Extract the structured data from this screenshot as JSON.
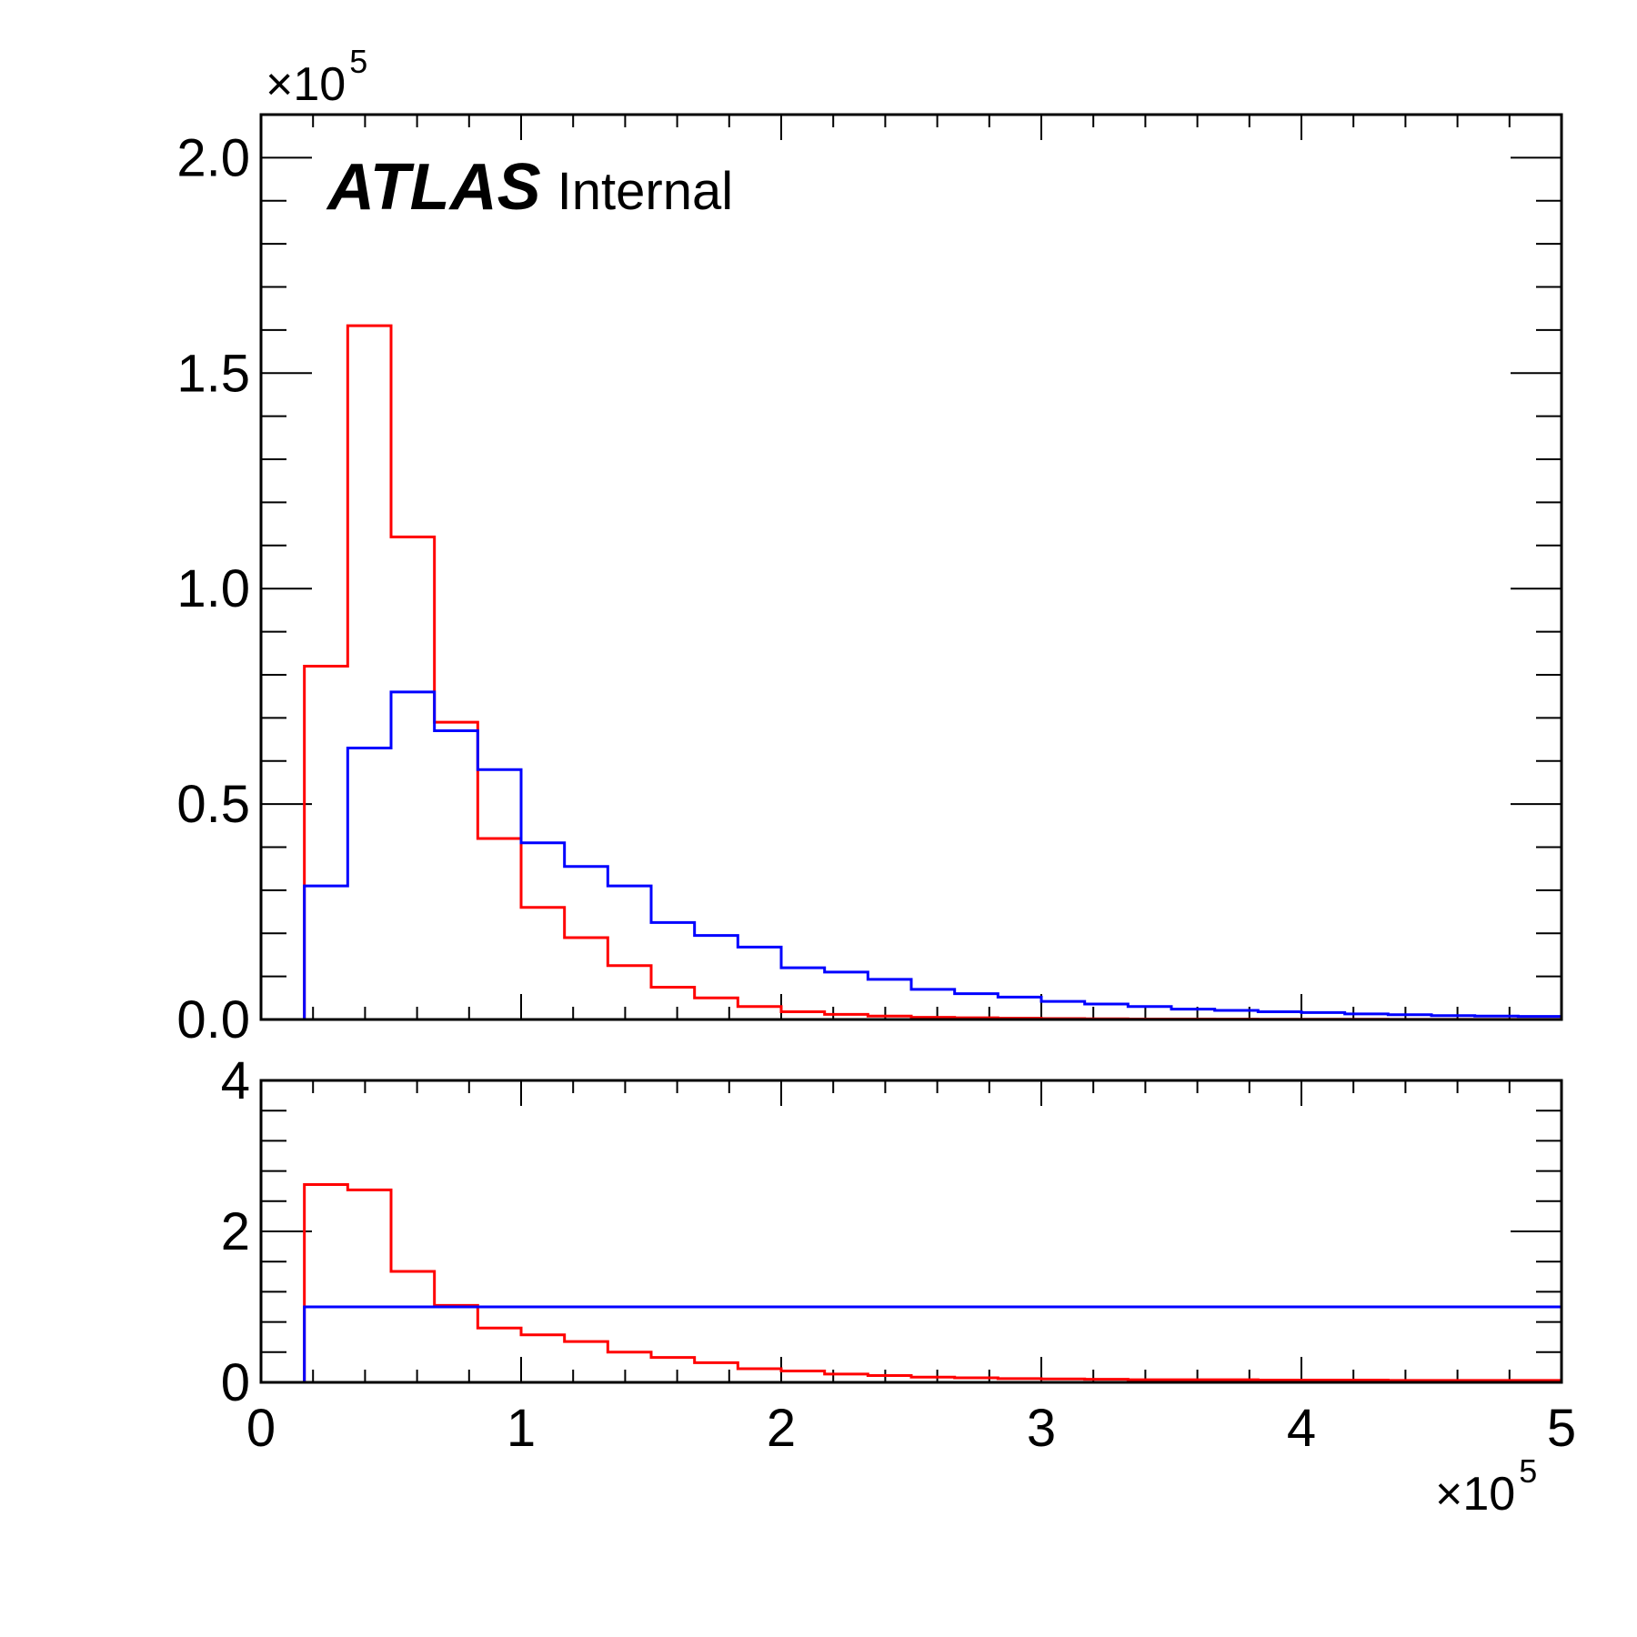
{
  "atlas_label": {
    "bold": "ATLAS",
    "suffix": "Internal"
  },
  "multipliers": {
    "top_y_base": "×10",
    "top_y_exp": "5",
    "x_base": "×10",
    "x_exp": "5"
  },
  "colors": {
    "series_a": "#ff0000",
    "series_b": "#0000ff",
    "axes": "#000000"
  },
  "chart_data": [
    {
      "type": "histogram",
      "panel": "main",
      "xlim": [
        0,
        5
      ],
      "ylim": [
        0,
        2.1
      ],
      "x_scale_label": "×10^5",
      "y_scale_label": "×10^5",
      "xticks": [
        0,
        1,
        2,
        3,
        4,
        5
      ],
      "yticks": [
        "0.0",
        "0.5",
        "1.0",
        "1.5",
        "2.0"
      ],
      "bin_edges": [
        0.1667,
        0.3333,
        0.5,
        0.6667,
        0.8333,
        1.0,
        1.1667,
        1.3333,
        1.5,
        1.6667,
        1.8333,
        2.0,
        2.1667,
        2.3333,
        2.5,
        2.6667,
        2.8333,
        3.0,
        3.1667,
        3.3333,
        3.5,
        3.6667,
        3.8333,
        4.0,
        4.1667,
        4.3333,
        4.5,
        4.6667,
        4.8333,
        5.0
      ],
      "series": [
        {
          "color": "#ff0000",
          "values": [
            0.82,
            1.61,
            1.12,
            0.69,
            0.42,
            0.26,
            0.19,
            0.125,
            0.075,
            0.05,
            0.03,
            0.018,
            0.012,
            0.008,
            0.005,
            0.004,
            0.003,
            0.002,
            0.0015,
            0.001,
            0.001,
            0.0008,
            0.0006,
            0.0005,
            0.0004,
            0.0003,
            0.0003,
            0.0002,
            0.0002
          ]
        },
        {
          "color": "#0000ff",
          "values": [
            0.31,
            0.63,
            0.76,
            0.67,
            0.58,
            0.41,
            0.355,
            0.31,
            0.225,
            0.195,
            0.168,
            0.12,
            0.11,
            0.093,
            0.07,
            0.06,
            0.052,
            0.042,
            0.036,
            0.03,
            0.024,
            0.021,
            0.018,
            0.016,
            0.013,
            0.011,
            0.009,
            0.008,
            0.007
          ]
        }
      ]
    },
    {
      "type": "histogram",
      "panel": "ratio",
      "xlim": [
        0,
        5
      ],
      "ylim": [
        0,
        4
      ],
      "xticks": [
        0,
        1,
        2,
        3,
        4,
        5
      ],
      "yticks": [
        "0",
        "2",
        "4"
      ],
      "bin_edges": [
        0.1667,
        0.3333,
        0.5,
        0.6667,
        0.8333,
        1.0,
        1.1667,
        1.3333,
        1.5,
        1.6667,
        1.8333,
        2.0,
        2.1667,
        2.3333,
        2.5,
        2.6667,
        2.8333,
        3.0,
        3.1667,
        3.3333,
        3.5,
        3.6667,
        3.8333,
        4.0,
        4.1667,
        4.3333,
        4.5,
        4.6667,
        4.8333,
        5.0
      ],
      "series": [
        {
          "color": "#ff0000",
          "values": [
            2.62,
            2.55,
            1.47,
            1.02,
            0.72,
            0.63,
            0.54,
            0.4,
            0.33,
            0.26,
            0.18,
            0.15,
            0.11,
            0.09,
            0.07,
            0.06,
            0.05,
            0.045,
            0.04,
            0.035,
            0.035,
            0.035,
            0.03,
            0.03,
            0.03,
            0.025,
            0.025,
            0.025,
            0.025
          ]
        },
        {
          "color": "#0000ff",
          "values": [
            1.0,
            1.0,
            1.0,
            1.0,
            1.0,
            1.0,
            1.0,
            1.0,
            1.0,
            1.0,
            1.0,
            1.0,
            1.0,
            1.0,
            1.0,
            1.0,
            1.0,
            1.0,
            1.0,
            1.0,
            1.0,
            1.0,
            1.0,
            1.0,
            1.0,
            1.0,
            1.0,
            1.0,
            1.0
          ]
        }
      ]
    }
  ]
}
